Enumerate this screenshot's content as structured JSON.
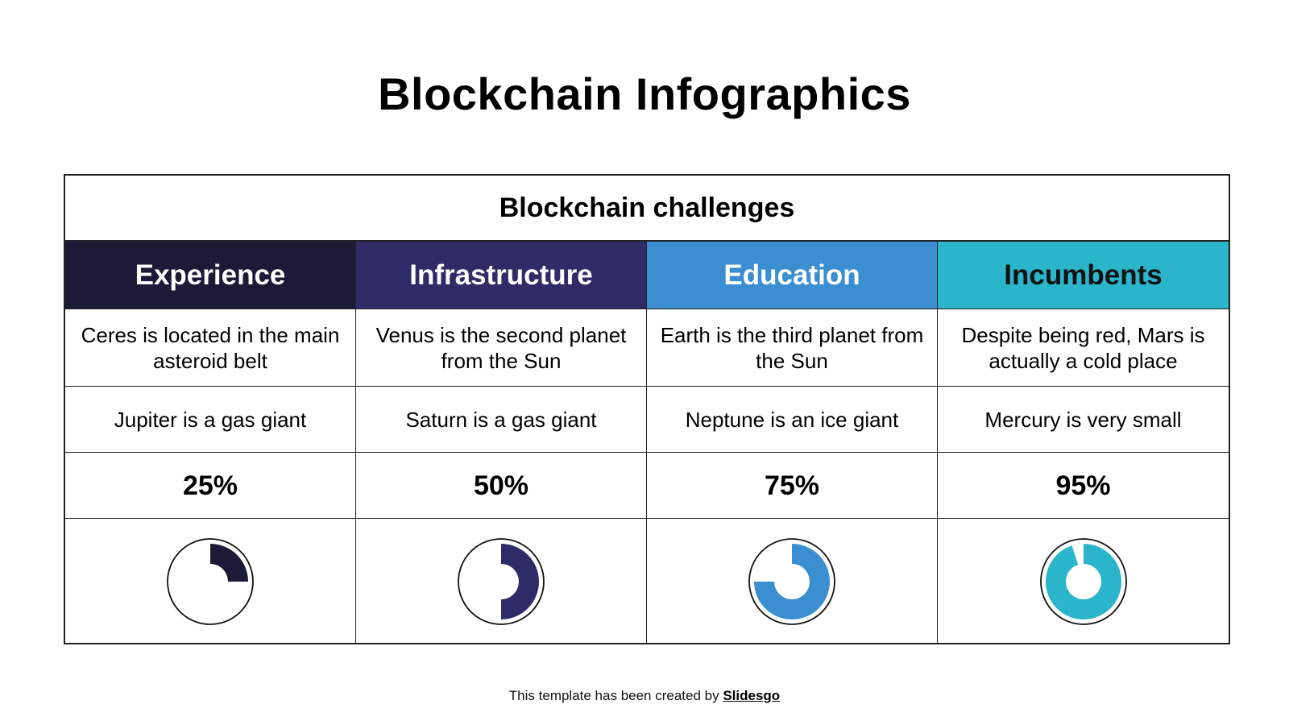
{
  "title": "Blockchain Infographics",
  "table": {
    "caption": "Blockchain challenges",
    "columns": [
      {
        "header": "Experience",
        "header_color": "#1b1a37",
        "header_text_color": "#ffffff",
        "row1": "Ceres is located in the main asteroid belt",
        "row2": "Jupiter is a gas giant",
        "percent_label": "25%",
        "percent": 25,
        "fill_color": "#1b1a37"
      },
      {
        "header": "Infrastructure",
        "header_color": "#2e2b66",
        "header_text_color": "#ffffff",
        "row1": "Venus is the second planet from the Sun",
        "row2": "Saturn is a gas giant",
        "percent_label": "50%",
        "percent": 50,
        "fill_color": "#2e2b66"
      },
      {
        "header": "Education",
        "header_color": "#3b8ecf",
        "header_text_color": "#ffffff",
        "row1": "Earth is the third planet from the Sun",
        "row2": "Neptune is an ice giant",
        "percent_label": "75%",
        "percent": 75,
        "fill_color": "#3b8ecf"
      },
      {
        "header": "Incumbents",
        "header_color": "#2bb5cb",
        "header_text_color": "#111111",
        "row1": "Despite being red, Mars is actually a cold place",
        "row2": "Mercury is very small",
        "percent_label": "95%",
        "percent": 95,
        "fill_color": "#2bb5cb"
      }
    ]
  },
  "footer": {
    "prefix": "This template has been created by ",
    "brand": "Slidesgo"
  },
  "chart_data": {
    "type": "pie",
    "title": "Blockchain challenges",
    "categories": [
      "Experience",
      "Infrastructure",
      "Education",
      "Incumbents"
    ],
    "values": [
      25,
      50,
      75,
      95
    ],
    "unit": "%",
    "colors": [
      "#1b1a37",
      "#2e2b66",
      "#3b8ecf",
      "#2bb5cb"
    ],
    "style": "four separate donut progress indicators, each filled clockwise from 12 o'clock",
    "legend": "none"
  }
}
